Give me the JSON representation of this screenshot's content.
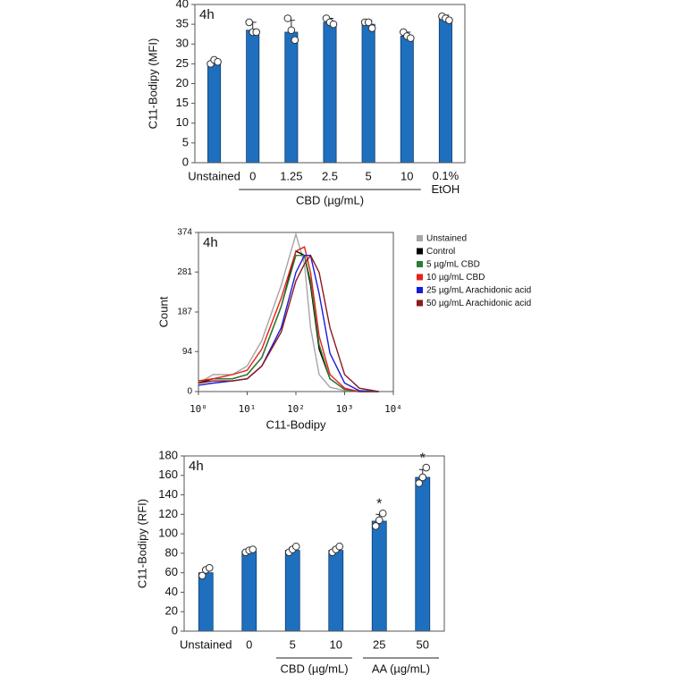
{
  "chart_data": [
    {
      "type": "bar",
      "panel_label": "4h",
      "y_label": "C11-Bodipy (MFI)",
      "categories": [
        "Unstained",
        "0",
        "1.25",
        "2.5",
        "5",
        "10",
        "0.1%\nEtOH"
      ],
      "values": [
        25.5,
        33.5,
        33,
        35.5,
        35,
        32,
        36.5
      ],
      "errors": [
        0.8,
        2,
        3,
        1,
        1,
        1,
        0.8
      ],
      "points": [
        [
          25,
          26,
          25.5
        ],
        [
          35.5,
          33,
          33
        ],
        [
          36.5,
          33.5,
          31
        ],
        [
          36.5,
          35.5,
          35
        ],
        [
          35.5,
          35.5,
          34
        ],
        [
          33,
          32,
          31.5
        ],
        [
          37,
          36.5,
          36
        ]
      ],
      "color": "#1f6fbf",
      "groups": [
        {
          "label": "CBD (µg/mL)",
          "categories": [
            "0",
            "1.25",
            "2.5",
            "5",
            "10"
          ]
        }
      ],
      "ylim": [
        0,
        40
      ],
      "yticks": [
        0,
        5,
        10,
        15,
        20,
        25,
        30,
        35,
        40
      ]
    },
    {
      "type": "line",
      "panel_label": "4h",
      "x_label": "C11-Bodipy",
      "y_label": "Count",
      "xscale": "log",
      "x": [
        1,
        2,
        5,
        10,
        20,
        50,
        100,
        150,
        200,
        300,
        500,
        1000,
        2000,
        5000
      ],
      "series": [
        {
          "name": "Unstained",
          "color": "#a6a6a6",
          "values": [
            20,
            40,
            40,
            60,
            120,
            250,
            370,
            300,
            150,
            40,
            10,
            2,
            0,
            0
          ]
        },
        {
          "name": "Control",
          "color": "#000000",
          "values": [
            20,
            30,
            30,
            40,
            80,
            200,
            330,
            320,
            250,
            100,
            30,
            5,
            0,
            0
          ]
        },
        {
          "name": "5 µg/mL CBD",
          "color": "#2e7d32",
          "values": [
            25,
            30,
            30,
            40,
            80,
            200,
            320,
            320,
            260,
            110,
            30,
            5,
            0,
            0
          ]
        },
        {
          "name": "10 µg/mL CBD",
          "color": "#e8201a",
          "values": [
            25,
            30,
            40,
            50,
            100,
            220,
            330,
            340,
            280,
            130,
            40,
            8,
            0,
            0
          ]
        },
        {
          "name": "25 µg/mL Arachidonic acid",
          "color": "#1a1adb",
          "values": [
            15,
            20,
            25,
            30,
            60,
            150,
            280,
            320,
            320,
            230,
            90,
            20,
            2,
            0
          ]
        },
        {
          "name": "50 µg/mL Arachidonic acid",
          "color": "#8b1a1a",
          "values": [
            20,
            25,
            25,
            30,
            60,
            140,
            260,
            300,
            320,
            280,
            150,
            40,
            8,
            0
          ]
        }
      ],
      "xlim": [
        1,
        10000
      ],
      "xticks": [
        {
          "value": 1,
          "label": "10⁰"
        },
        {
          "value": 10,
          "label": "10¹"
        },
        {
          "value": 100,
          "label": "10²"
        },
        {
          "value": 1000,
          "label": "10³"
        },
        {
          "value": 10000,
          "label": "10⁴"
        }
      ],
      "ylim": [
        0,
        374
      ],
      "yticks": [
        0,
        94,
        187,
        281,
        374
      ],
      "legend": "right"
    },
    {
      "type": "bar",
      "panel_label": "4h",
      "y_label": "C11-Bodipy (RFI)",
      "categories": [
        "Unstained",
        "0",
        "5",
        "10",
        "25",
        "50"
      ],
      "values": [
        60,
        82,
        83,
        83,
        113,
        158
      ],
      "errors": [
        4,
        2,
        3,
        3,
        7,
        8
      ],
      "points": [
        [
          57,
          63,
          65
        ],
        [
          81,
          83,
          84
        ],
        [
          81,
          84,
          87
        ],
        [
          81,
          84,
          87
        ],
        [
          108,
          114,
          121
        ],
        [
          152,
          158,
          168
        ]
      ],
      "color": "#1f6fbf",
      "groups": [
        {
          "label": "CBD (µg/mL)",
          "categories": [
            "5",
            "10"
          ]
        },
        {
          "label": "AA (µg/mL)",
          "categories": [
            "25",
            "50"
          ]
        }
      ],
      "annotations": [
        {
          "text": "*",
          "category": "25"
        },
        {
          "text": "*",
          "category": "50"
        }
      ],
      "ylim": [
        0,
        180
      ],
      "yticks": [
        0,
        20,
        40,
        60,
        80,
        100,
        120,
        140,
        160,
        180
      ]
    }
  ]
}
